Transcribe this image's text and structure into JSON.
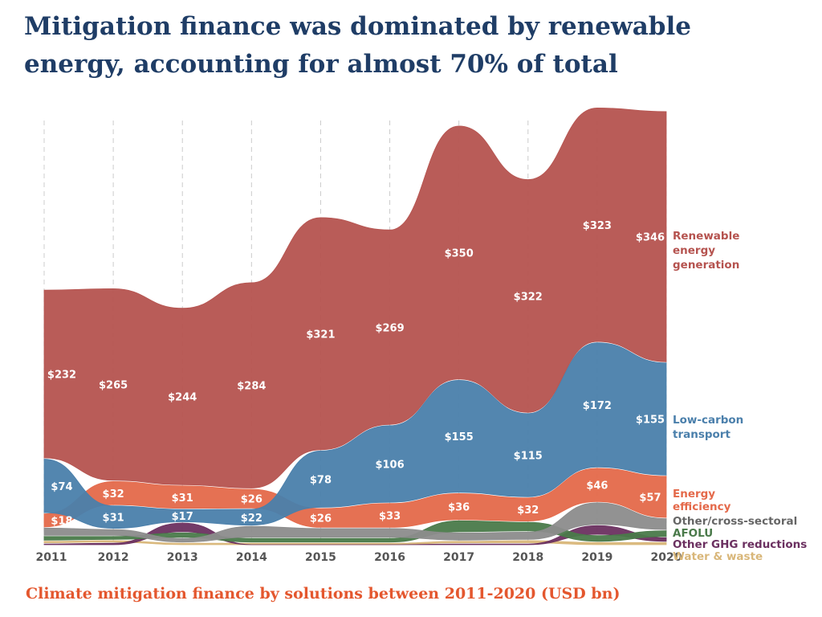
{
  "title": "Mitigation finance was dominated by renewable energy, accounting for almost 70% of total",
  "subtitle": "Climate mitigation finance by solutions between 2011-2020 (USD bn)",
  "chart_data": {
    "type": "area",
    "x": [
      "2011",
      "2012",
      "2013",
      "2014",
      "2015",
      "2016",
      "2017",
      "2018",
      "2019",
      "2020"
    ],
    "grid": "vertical dashed",
    "legend": "right, inline labels",
    "series": [
      {
        "name": "Renewable energy generation",
        "color": "#b5534f",
        "labels": [
          "$232",
          "$265",
          "$244",
          "$284",
          "$321",
          "$269",
          "$350",
          "$322",
          "$323",
          "$346"
        ],
        "values": [
          232,
          265,
          244,
          284,
          321,
          269,
          350,
          322,
          323,
          346
        ]
      },
      {
        "name": "Low-carbon transport",
        "color": "#4a7fab",
        "labels": [
          "$74",
          "$31",
          "$17",
          "$22",
          "$78",
          "$106",
          "$155",
          "$115",
          "$172",
          "$155"
        ],
        "values": [
          74,
          31,
          17,
          22,
          78,
          106,
          155,
          115,
          172,
          155
        ]
      },
      {
        "name": "Energy efficiency",
        "color": "#e4694a",
        "labels": [
          "$18",
          "$32",
          "$31",
          "$26",
          "$26",
          "$33",
          "$36",
          "$32",
          "$46",
          "$57"
        ],
        "values": [
          18,
          32,
          31,
          26,
          26,
          33,
          36,
          32,
          46,
          57
        ]
      },
      {
        "name": "Other/cross-sectoral",
        "color": "#8c8c8c",
        "values": [
          10,
          8,
          5,
          15,
          12,
          12,
          10,
          10,
          30,
          15
        ]
      },
      {
        "name": "AFOLU",
        "color": "#4a7a4a",
        "values": [
          5,
          4,
          6,
          5,
          5,
          5,
          15,
          12,
          8,
          8
        ]
      },
      {
        "name": "Other GHG reductions",
        "color": "#6b3060",
        "values": [
          1,
          2,
          12,
          0,
          0,
          0,
          1,
          1,
          12,
          5
        ]
      },
      {
        "name": "Water & waste",
        "color": "#d9b77a",
        "values": [
          2,
          2,
          2,
          2,
          2,
          2,
          2,
          3,
          3,
          3
        ]
      }
    ]
  }
}
